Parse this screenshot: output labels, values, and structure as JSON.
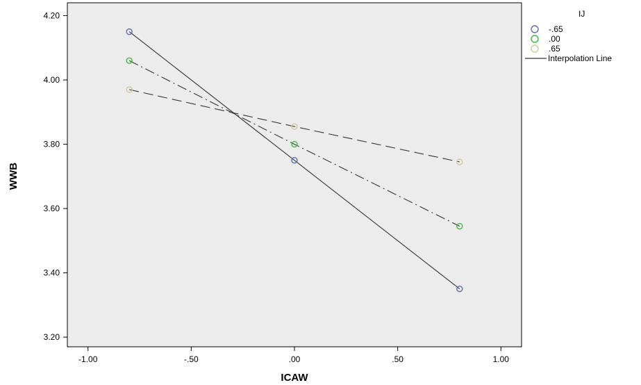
{
  "chart_data": {
    "type": "line",
    "xlabel": "ICAW",
    "ylabel": "WWB",
    "xlim": [
      -1.1,
      1.1
    ],
    "ylim": [
      3.17,
      4.24
    ],
    "x_ticks": [
      -1.0,
      -0.5,
      0.0,
      0.5,
      1.0
    ],
    "x_tick_labels": [
      "-1.00",
      "-.50",
      ".00",
      ".50",
      "1.00"
    ],
    "y_ticks": [
      3.2,
      3.4,
      3.6,
      3.8,
      4.0,
      4.2
    ],
    "y_tick_labels": [
      "3.20",
      "3.40",
      "3.60",
      "3.80",
      "4.00",
      "4.20"
    ],
    "grid": false,
    "background": "#ececec",
    "legend": {
      "title": "IJ",
      "placement": "right",
      "interpolation_label": "Interpolation Line"
    },
    "series": [
      {
        "name": "-.65",
        "color": "#5b6fb5",
        "line_style": "solid",
        "x": [
          -0.8,
          0.0,
          0.8
        ],
        "y": [
          4.15,
          3.75,
          3.35
        ]
      },
      {
        "name": ".00",
        "color": "#3dbb3d",
        "line_style": "dash-dot",
        "x": [
          -0.8,
          0.0,
          0.8
        ],
        "y": [
          4.06,
          3.8,
          3.545
        ]
      },
      {
        "name": ".65",
        "color": "#cfc99a",
        "line_style": "dashed",
        "x": [
          -0.8,
          0.0,
          0.8
        ],
        "y": [
          3.97,
          3.855,
          3.745
        ]
      }
    ]
  }
}
